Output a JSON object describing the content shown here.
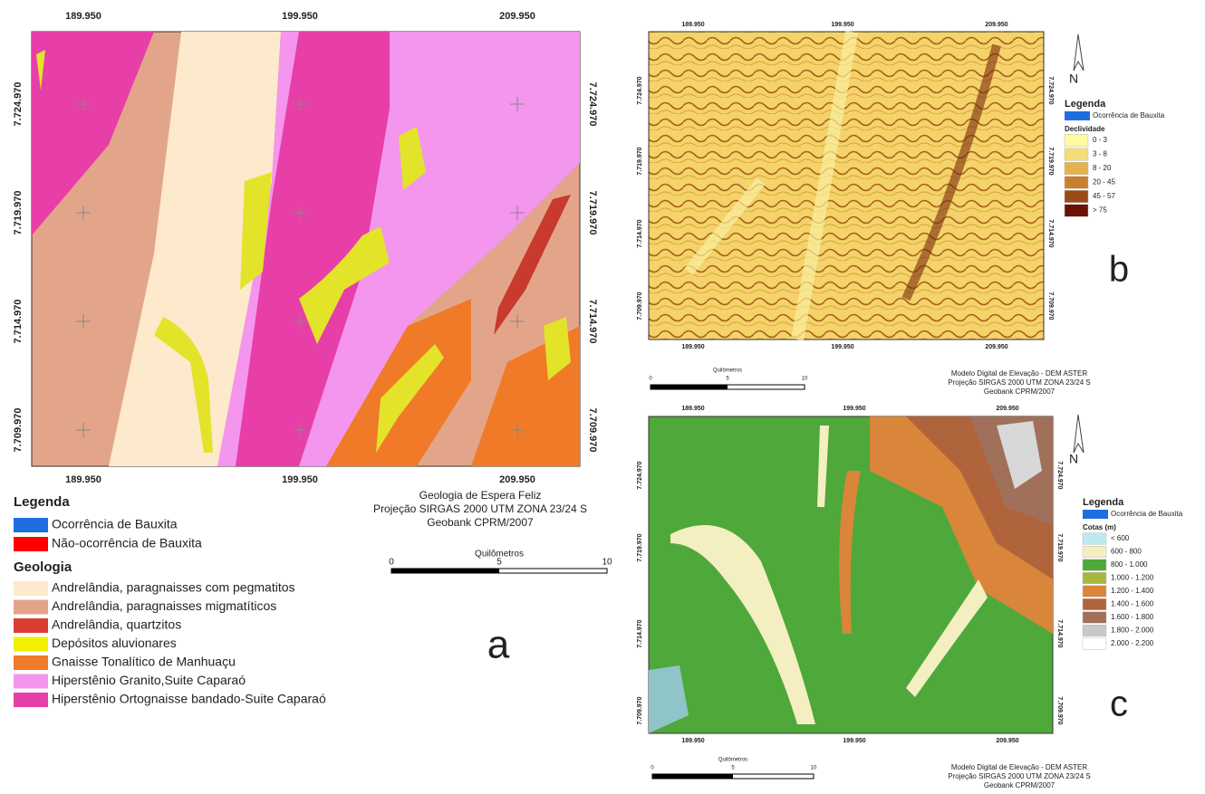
{
  "panel_a": {
    "coords_top": [
      "189.950",
      "199.950",
      "209.950"
    ],
    "coords_bottom": [
      "189.950",
      "199.950",
      "209.950"
    ],
    "coords_left": [
      "7.724.970",
      "7.719.970",
      "7.714.970",
      "7.709.970"
    ],
    "coords_right": [
      "7.724.970",
      "7.719.970",
      "7.714.970",
      "7.709.970"
    ],
    "legend_title": "Legenda",
    "occurrence_items": [
      {
        "label": "Ocorrência de Bauxita",
        "color": "#1f6ee0"
      },
      {
        "label": "Não-ocorrência de Bauxita",
        "color": "#ff0000"
      }
    ],
    "geology_title": "Geologia",
    "geology_items": [
      {
        "label": "Andrelândia, paragnaisses com pegmatitos",
        "color": "#fde9cc"
      },
      {
        "label": "Andrelândia, paragnaisses migmatíticos",
        "color": "#e3a58a"
      },
      {
        "label": "Andrelândia, quartzitos",
        "color": "#dc3c33"
      },
      {
        "label": "Depósitos aluvionares",
        "color": "#f0f000"
      },
      {
        "label": "Gnaisse Tonalítico de Manhuaçu",
        "color": "#f07a28"
      },
      {
        "label": "Hiperstênio Granito,Suite Caparaó",
        "color": "#f495ee"
      },
      {
        "label": "Hiperstênio Ortognaisse bandado-Suite Caparaó",
        "color": "#e83ea8"
      }
    ],
    "caption": [
      "Geologia de Espera Feliz",
      "Projeção  SIRGAS 2000 UTM ZONA 23/24 S",
      "Geobank CPRM/2007"
    ],
    "scale_title": "Quilômetros",
    "scale_labels": [
      "0",
      "5",
      "10"
    ],
    "letter": "a"
  },
  "panel_b": {
    "coords_top": [
      "189.950",
      "199.950",
      "209.950"
    ],
    "coords_bottom": [
      "189.950",
      "199.950",
      "209.950"
    ],
    "coords_left": [
      "7.724.970",
      "7.719.970",
      "7.714.970",
      "7.709.970"
    ],
    "coords_right": [
      "7.724.970",
      "7.719.970",
      "7.714.970",
      "7.709.970"
    ],
    "north": "N",
    "legend_title": "Legenda",
    "occurrence": {
      "label": "Ocorrência de Bauxita",
      "color": "#1f6ee0"
    },
    "classes_title": "Declividade",
    "classes": [
      {
        "label": "0 - 3",
        "color": "#fefba0"
      },
      {
        "label": "3 - 8",
        "color": "#f5dc7a"
      },
      {
        "label": "8 - 20",
        "color": "#e7b24d"
      },
      {
        "label": "20 - 45",
        "color": "#c9802e"
      },
      {
        "label": "45 - 57",
        "color": "#9c4b17"
      },
      {
        "label": "> 75",
        "color": "#6b1204"
      }
    ],
    "caption": [
      "Modelo Digital de Elevação - DEM ASTER",
      "Projeção  SIRGAS 2000 UTM ZONA 23/24 S",
      "Geobank CPRM/2007"
    ],
    "scale_title": "Quilômetros",
    "scale_labels": [
      "0",
      "5",
      "10"
    ],
    "letter": "b"
  },
  "panel_c": {
    "coords_top": [
      "189.950",
      "199.950",
      "209.950"
    ],
    "coords_bottom": [
      "189.950",
      "199.950",
      "209.950"
    ],
    "coords_left": [
      "7.724.970",
      "7.719.970",
      "7.714.970",
      "7.709.970"
    ],
    "coords_right": [
      "7.724.970",
      "7.719.970",
      "7.714.970",
      "7.709.970"
    ],
    "north": "N",
    "legend_title": "Legenda",
    "occurrence": {
      "label": "Ocorrência de Bauxita",
      "color": "#1f6ee0"
    },
    "classes_title": "Cotas (m)",
    "classes": [
      {
        "label": "< 600",
        "color": "#bde9f0"
      },
      {
        "label": "600 - 800",
        "color": "#f4efc0"
      },
      {
        "label": "800 - 1.000",
        "color": "#4fa83a"
      },
      {
        "label": "1.000 - 1.200",
        "color": "#a8b83c"
      },
      {
        "label": "1.200 - 1.400",
        "color": "#d9853a"
      },
      {
        "label": "1.400 - 1.600",
        "color": "#b0643c"
      },
      {
        "label": "1.600 - 1.800",
        "color": "#a0705a"
      },
      {
        "label": "1.800 - 2.000",
        "color": "#c8c8c8"
      },
      {
        "label": "2.000 - 2.200",
        "color": "#ffffff"
      }
    ],
    "caption": [
      "Modelo Digital de Elevação - DEM ASTER",
      "Projeção  SIRGAS 2000 UTM ZONA 23/24 S",
      "Geobank CPRM/2007"
    ],
    "scale_title": "Quilômetros",
    "scale_labels": [
      "0",
      "5",
      "10"
    ],
    "letter": "c"
  }
}
